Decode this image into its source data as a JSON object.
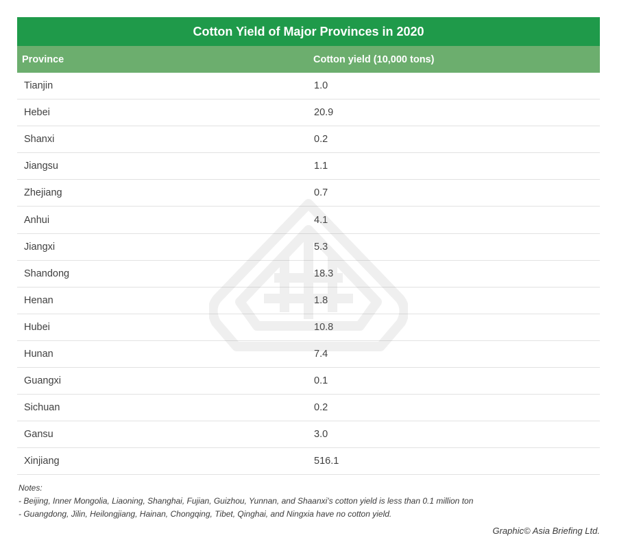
{
  "chart_data": {
    "type": "table",
    "title": "Cotton Yield of Major Provinces in 2020",
    "columns": [
      "Province",
      "Cotton yield (10,000 tons)"
    ],
    "rows": [
      {
        "province": "Tianjin",
        "value": "1.0"
      },
      {
        "province": "Hebei",
        "value": "20.9"
      },
      {
        "province": "Shanxi",
        "value": "0.2"
      },
      {
        "province": "Jiangsu",
        "value": "1.1"
      },
      {
        "province": "Zhejiang",
        "value": "0.7"
      },
      {
        "province": "Anhui",
        "value": "4.1"
      },
      {
        "province": "Jiangxi",
        "value": "5.3"
      },
      {
        "province": "Shandong",
        "value": "18.3"
      },
      {
        "province": "Henan",
        "value": "1.8"
      },
      {
        "province": "Hubei",
        "value": "10.8"
      },
      {
        "province": "Hunan",
        "value": "7.4"
      },
      {
        "province": "Guangxi",
        "value": "0.1"
      },
      {
        "province": "Sichuan",
        "value": "0.2"
      },
      {
        "province": "Gansu",
        "value": "3.0"
      },
      {
        "province": "Xinjiang",
        "value": "516.1"
      }
    ]
  },
  "notes": {
    "heading": "Notes:",
    "line1": "- Beijing, Inner Mongolia, Liaoning, Shanghai, Fujian, Guizhou, Yunnan, and Shaanxi's cotton yield is less than 0.1 million ton",
    "line2": "- Guangdong, Jilin, Heilongjiang, Hainan, Chongqing, Tibet, Qinghai, and Ningxia have no cotton yield."
  },
  "credit": "Graphic© Asia Briefing Ltd.",
  "colors": {
    "title_bg": "#1f9a4a",
    "header_bg": "#6cae6e"
  },
  "watermark": {
    "icon": "asia-briefing-logo-icon"
  }
}
